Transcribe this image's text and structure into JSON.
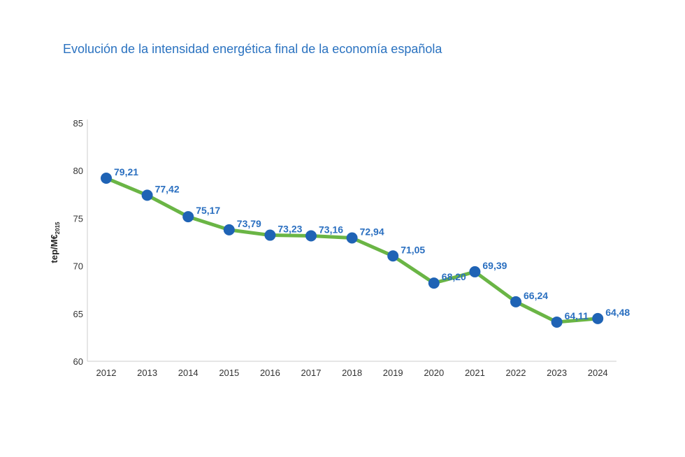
{
  "chart_data": {
    "type": "line",
    "title": "Evolución de la intensidad energética final de la economía española",
    "xlabel": "",
    "ylabel": "tep/M€",
    "ylabel_subscript": "2015",
    "categories": [
      "2012",
      "2013",
      "2014",
      "2015",
      "2016",
      "2017",
      "2018",
      "2019",
      "2020",
      "2021",
      "2022",
      "2023",
      "2024"
    ],
    "values": [
      79.21,
      77.42,
      75.17,
      73.79,
      73.23,
      73.16,
      72.94,
      71.05,
      68.2,
      69.39,
      66.24,
      64.11,
      64.48
    ],
    "data_labels": [
      "79,21",
      "77,42",
      "75,17",
      "73,79",
      "73,23",
      "73,16",
      "72,94",
      "71,05",
      "68,20",
      "69,39",
      "66,24",
      "64,11",
      "64,48"
    ],
    "ylim": [
      60,
      85
    ],
    "yticks": [
      60,
      65,
      70,
      75,
      80,
      85
    ],
    "grid": false,
    "line_color": "#6ab545",
    "marker_color": "#1f63b5",
    "label_color": "#2a6fc0",
    "title_color": "#2a72c0"
  }
}
